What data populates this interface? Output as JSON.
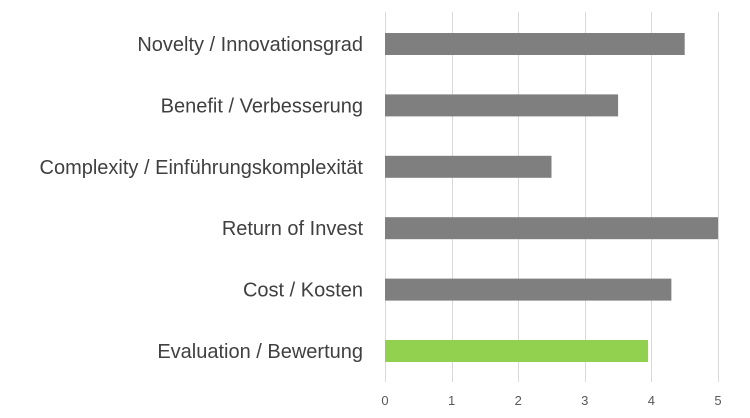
{
  "chart_data": {
    "type": "bar",
    "orientation": "horizontal",
    "categories": [
      "Novelty / Innovationsgrad",
      "Benefit / Verbesserung",
      "Complexity / Einführungskomplexität",
      "Return of Invest",
      "Cost / Kosten",
      "Evaluation / Bewertung"
    ],
    "values": [
      4.5,
      3.5,
      2.5,
      5.0,
      4.3,
      3.95
    ],
    "bar_colors": [
      "#7f7f7f",
      "#7f7f7f",
      "#7f7f7f",
      "#7f7f7f",
      "#7f7f7f",
      "#92d050"
    ],
    "xlim": [
      0,
      5
    ],
    "xticks": [
      "0",
      "1",
      "2",
      "3",
      "4",
      "5"
    ],
    "grid": true,
    "legend": false,
    "title": "",
    "xlabel": "",
    "ylabel": ""
  }
}
